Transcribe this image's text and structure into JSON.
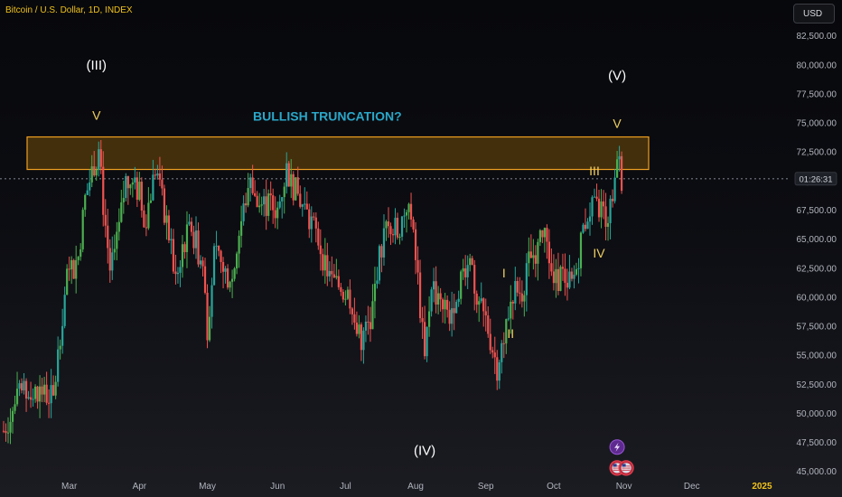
{
  "header": {
    "symbol_title": "Bitcoin / U.S. Dollar, 1D, INDEX",
    "currency_button": "USD"
  },
  "colors": {
    "up": "#26a69a",
    "up_bright": "#4caf50",
    "down": "#ef5350",
    "zone_fill": "#8a5a08",
    "zone_border": "#f0a020",
    "wave_yellow": "#f0d060",
    "wave_white": "#ffffff",
    "annotation": "#2aa7c9",
    "price_line": "#5a5e68"
  },
  "chart_data": {
    "type": "candlestick",
    "x_axis_labels": [
      "Mar",
      "Apr",
      "May",
      "Jun",
      "Jul",
      "Aug",
      "Sep",
      "Oct",
      "Nov",
      "Dec",
      "2025"
    ],
    "y_axis_labels": [
      "82,500.00",
      "80,000.00",
      "77,500.00",
      "75,000.00",
      "72,500.00",
      "70,000.00",
      "67,500.00",
      "65,000.00",
      "62,500.00",
      "60,000.00",
      "57,500.00",
      "55,000.00",
      "52,500.00",
      "50,000.00",
      "47,500.00",
      "45,000.00"
    ],
    "y_range": [
      44200,
      84500
    ],
    "current_price_countdown": "01:26:31",
    "resistance_zone": {
      "from": 71000,
      "to": 73800
    },
    "annotations": [
      {
        "text": "BULLISH TRUNCATION?",
        "date": "2024-06-23",
        "price": 75200,
        "style": "annotation"
      }
    ],
    "wave_labels": [
      {
        "text": "(III)",
        "date": "2024-03-13",
        "price": 79600,
        "style": "white"
      },
      {
        "text": "V",
        "date": "2024-03-13",
        "price": 75300,
        "style": "yellow"
      },
      {
        "text": "(IV)",
        "date": "2024-08-05",
        "price": 46400,
        "style": "white"
      },
      {
        "text": "I",
        "date": "2024-09-09",
        "price": 61700,
        "style": "yellow"
      },
      {
        "text": "II",
        "date": "2024-09-12",
        "price": 56500,
        "style": "yellow"
      },
      {
        "text": "III",
        "date": "2024-10-19",
        "price": 70500,
        "style": "yellow"
      },
      {
        "text": "IV",
        "date": "2024-10-21",
        "price": 63400,
        "style": "yellow"
      },
      {
        "text": "(V)",
        "date": "2024-10-29",
        "price": 78700,
        "style": "white"
      },
      {
        "text": "V",
        "date": "2024-10-29",
        "price": 74600,
        "style": "yellow"
      }
    ],
    "events": [
      {
        "icon": "lightning-icon",
        "date": "2024-10-29",
        "price": 47100
      },
      {
        "icon": "us-flag-icon",
        "date": "2024-10-29",
        "price": 45300
      },
      {
        "icon": "us-flag-icon",
        "date": "2024-11-02",
        "price": 45300
      }
    ],
    "series": [
      {
        "x": "2024-02-01",
        "y": 48500
      },
      {
        "x": "2024-02-08",
        "y": 51500
      },
      {
        "x": "2024-02-16",
        "y": 52000
      },
      {
        "x": "2024-02-23",
        "y": 51200
      },
      {
        "x": "2024-02-26",
        "y": 57000
      },
      {
        "x": "2024-02-29",
        "y": 61500
      },
      {
        "x": "2024-03-05",
        "y": 63500
      },
      {
        "x": "2024-03-08",
        "y": 68500
      },
      {
        "x": "2024-03-12",
        "y": 71500
      },
      {
        "x": "2024-03-14",
        "y": 72500
      },
      {
        "x": "2024-03-16",
        "y": 68000
      },
      {
        "x": "2024-03-19",
        "y": 62500
      },
      {
        "x": "2024-03-22",
        "y": 64500
      },
      {
        "x": "2024-03-26",
        "y": 70000
      },
      {
        "x": "2024-03-29",
        "y": 69500
      },
      {
        "x": "2024-04-01",
        "y": 69000
      },
      {
        "x": "2024-04-03",
        "y": 66000
      },
      {
        "x": "2024-04-08",
        "y": 71000
      },
      {
        "x": "2024-04-13",
        "y": 66500
      },
      {
        "x": "2024-04-17",
        "y": 61500
      },
      {
        "x": "2024-04-20",
        "y": 64500
      },
      {
        "x": "2024-04-24",
        "y": 66000
      },
      {
        "x": "2024-04-29",
        "y": 62500
      },
      {
        "x": "2024-05-01",
        "y": 57500
      },
      {
        "x": "2024-05-04",
        "y": 63500
      },
      {
        "x": "2024-05-08",
        "y": 62500
      },
      {
        "x": "2024-05-12",
        "y": 61500
      },
      {
        "x": "2024-05-15",
        "y": 65500
      },
      {
        "x": "2024-05-20",
        "y": 70500
      },
      {
        "x": "2024-05-23",
        "y": 68000
      },
      {
        "x": "2024-05-27",
        "y": 68000
      },
      {
        "x": "2024-06-01",
        "y": 67500
      },
      {
        "x": "2024-06-05",
        "y": 71000
      },
      {
        "x": "2024-06-08",
        "y": 69500
      },
      {
        "x": "2024-06-12",
        "y": 68000
      },
      {
        "x": "2024-06-18",
        "y": 65500
      },
      {
        "x": "2024-06-24",
        "y": 61500
      },
      {
        "x": "2024-06-28",
        "y": 61000
      },
      {
        "x": "2024-07-03",
        "y": 60000
      },
      {
        "x": "2024-07-05",
        "y": 57000
      },
      {
        "x": "2024-07-08",
        "y": 56500
      },
      {
        "x": "2024-07-12",
        "y": 57500
      },
      {
        "x": "2024-07-15",
        "y": 62500
      },
      {
        "x": "2024-07-20",
        "y": 67000
      },
      {
        "x": "2024-07-24",
        "y": 65500
      },
      {
        "x": "2024-07-28",
        "y": 68000
      },
      {
        "x": "2024-07-30",
        "y": 66500
      },
      {
        "x": "2024-08-02",
        "y": 61500
      },
      {
        "x": "2024-08-05",
        "y": 54500
      },
      {
        "x": "2024-08-08",
        "y": 61500
      },
      {
        "x": "2024-08-12",
        "y": 59000
      },
      {
        "x": "2024-08-16",
        "y": 58500
      },
      {
        "x": "2024-08-20",
        "y": 61000
      },
      {
        "x": "2024-08-25",
        "y": 64000
      },
      {
        "x": "2024-08-28",
        "y": 59500
      },
      {
        "x": "2024-09-01",
        "y": 58000
      },
      {
        "x": "2024-09-06",
        "y": 54000
      },
      {
        "x": "2024-09-09",
        "y": 57000
      },
      {
        "x": "2024-09-13",
        "y": 60500
      },
      {
        "x": "2024-09-17",
        "y": 60500
      },
      {
        "x": "2024-09-20",
        "y": 63000
      },
      {
        "x": "2024-09-27",
        "y": 65500
      },
      {
        "x": "2024-10-01",
        "y": 61000
      },
      {
        "x": "2024-10-04",
        "y": 62000
      },
      {
        "x": "2024-10-09",
        "y": 61000
      },
      {
        "x": "2024-10-11",
        "y": 62500
      },
      {
        "x": "2024-10-14",
        "y": 66000
      },
      {
        "x": "2024-10-17",
        "y": 67500
      },
      {
        "x": "2024-10-21",
        "y": 67500
      },
      {
        "x": "2024-10-24",
        "y": 67000
      },
      {
        "x": "2024-10-26",
        "y": 67500
      },
      {
        "x": "2024-10-28",
        "y": 69500
      },
      {
        "x": "2024-10-29",
        "y": 72500
      },
      {
        "x": "2024-10-31",
        "y": 70200
      }
    ]
  }
}
